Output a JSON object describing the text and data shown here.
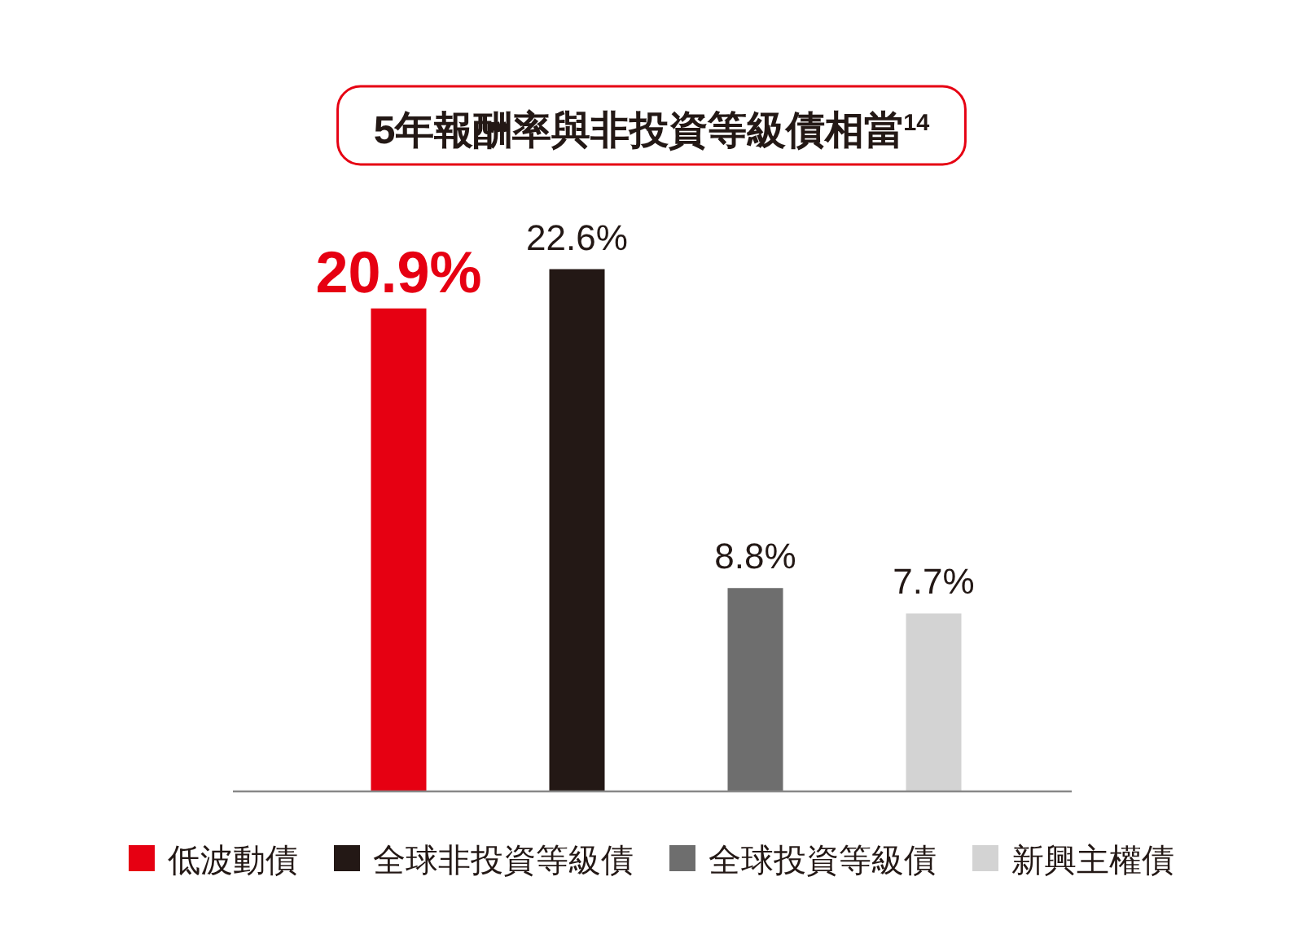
{
  "chart_data": {
    "type": "bar",
    "title": "5年報酬率與非投資等級債相當$^{14}$",
    "stacked": true,
    "categories": [
      null,
      null,
      null,
      null
    ],
    "series": [
      {
        "name": "低波動債",
        "color": "#e60012",
        "values": [
          20.9,
          null,
          null,
          null
        ],
        "value_labels": [
          "20.9%",
          null,
          null,
          null
        ]
      },
      {
        "name": "全球非投資等級債",
        "color": "#231815",
        "values": [
          null,
          22.6,
          null,
          null
        ],
        "value_labels": [
          null,
          "22.6%",
          null,
          null
        ]
      },
      {
        "name": "全球投資等級債",
        "color": "#6e6e6e",
        "values": [
          null,
          null,
          8.8,
          null
        ],
        "value_labels": [
          null,
          null,
          "8.8%",
          null
        ]
      },
      {
        "name": "新興主權債",
        "color": "#d3d3d3",
        "values": [
          null,
          null,
          null,
          7.7
        ],
        "value_labels": [
          null,
          null,
          null,
          "7.7%"
        ]
      }
    ],
    "legend": "bottom"
  }
}
